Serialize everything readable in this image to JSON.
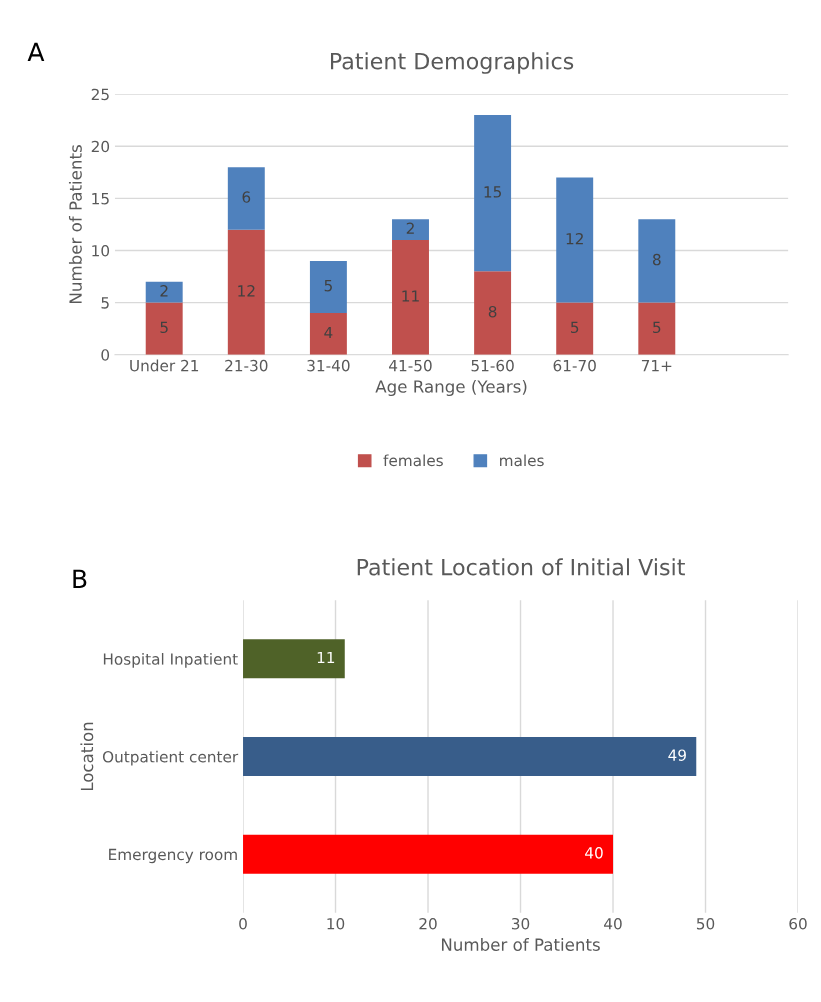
{
  "chart_data": [
    {
      "type": "bar",
      "title": "Patient Demographics",
      "xlabel": "Age Range (Years)",
      "ylabel": "Number of Patients",
      "annotations": [
        "A"
      ],
      "categories": [
        "Under 21",
        "21-30",
        "31-40",
        "41-50",
        "51-60",
        "61-70",
        "71+"
      ],
      "stacked": true,
      "data_labels": true,
      "ylim": [
        0,
        25
      ],
      "yticks": [
        0,
        5,
        10,
        15,
        20,
        25
      ],
      "grid": "y",
      "legend": "bottom",
      "series": [
        {
          "name": "females",
          "color": "#c0504d",
          "values": [
            5,
            12,
            4,
            11,
            8,
            5,
            5
          ]
        },
        {
          "name": "males",
          "color": "#4f81bd",
          "values": [
            2,
            6,
            5,
            2,
            15,
            12,
            8
          ]
        }
      ]
    },
    {
      "type": "bar",
      "title": "Patient Location of Initial Visit",
      "xlabel": "Number of Patients",
      "ylabel": "Location",
      "annotations": [
        "B"
      ],
      "orientation": "horizontal",
      "categories": [
        "Hospital Inpatient",
        "Outpatient center",
        "Emergency room"
      ],
      "data_labels": true,
      "xlim": [
        0,
        60
      ],
      "xticks": [
        0,
        10,
        20,
        30,
        40,
        50,
        60
      ],
      "grid": "x",
      "series": [
        {
          "colors": [
            "#4f6228",
            "#385d8a",
            "#ff0000"
          ],
          "values": [
            11,
            49,
            40
          ]
        }
      ]
    }
  ]
}
